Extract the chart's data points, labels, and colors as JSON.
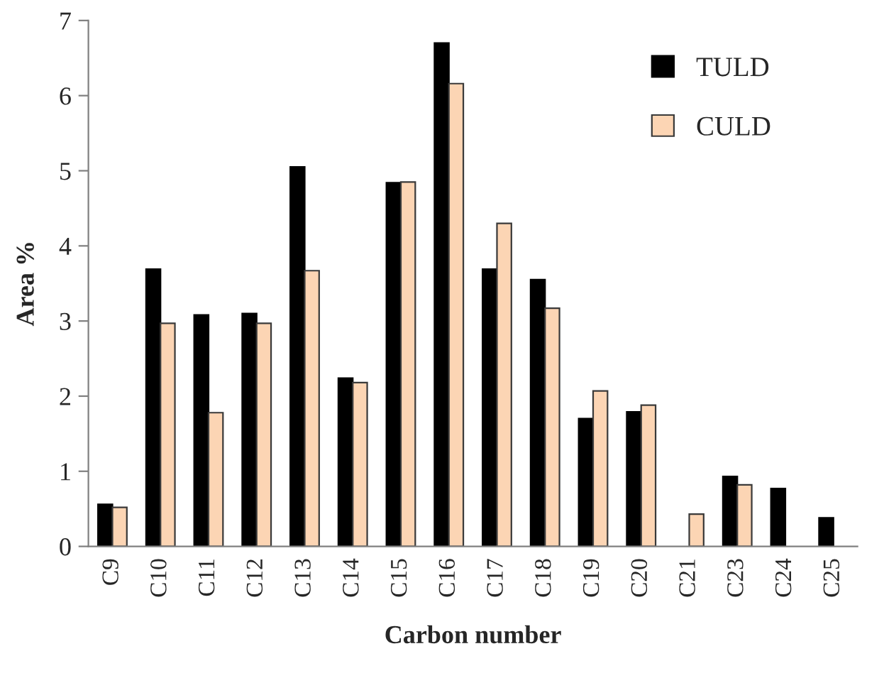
{
  "chart_data": {
    "type": "bar",
    "xlabel": "Carbon number",
    "ylabel": "Area %",
    "categories": [
      "C9",
      "C10",
      "C11",
      "C12",
      "C13",
      "C14",
      "C15",
      "C16",
      "C17",
      "C18",
      "C19",
      "C20",
      "C21",
      "C23",
      "C24",
      "C25"
    ],
    "series": [
      {
        "name": "TULD",
        "color": "#000000",
        "values": [
          0.56,
          3.69,
          3.08,
          3.1,
          5.05,
          2.24,
          4.84,
          6.7,
          3.69,
          3.55,
          1.7,
          1.79,
          null,
          0.93,
          0.77,
          0.38
        ]
      },
      {
        "name": "CULD",
        "color": "#fcd5b4",
        "values": [
          0.52,
          2.97,
          1.78,
          2.97,
          3.67,
          2.18,
          4.85,
          6.16,
          4.3,
          3.17,
          2.07,
          1.88,
          0.43,
          0.82,
          null,
          null
        ]
      }
    ],
    "ylim": [
      0,
      7
    ],
    "yticks": [
      0,
      1,
      2,
      3,
      4,
      5,
      6,
      7
    ],
    "grid": false,
    "legend": "top right"
  }
}
